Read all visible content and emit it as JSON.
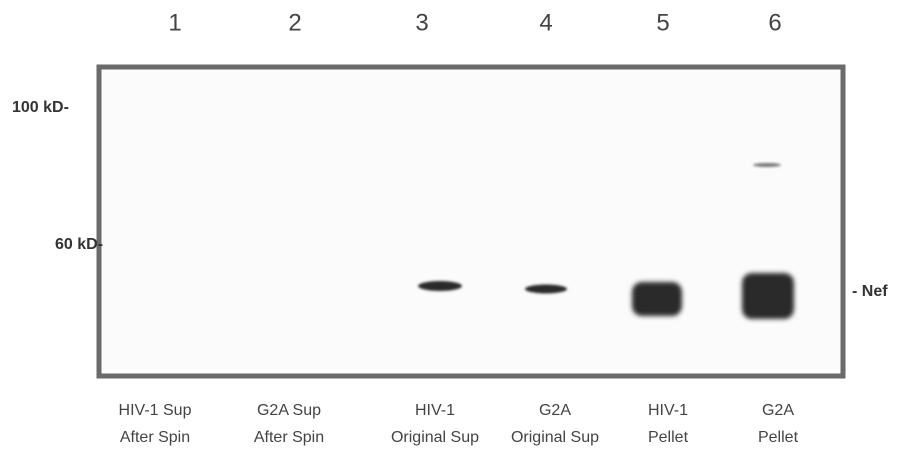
{
  "lanes": [
    {
      "number": "1",
      "label": [
        "HIV-1 Sup",
        "After Spin"
      ]
    },
    {
      "number": "2",
      "label": [
        "G2A Sup",
        "After Spin"
      ]
    },
    {
      "number": "3",
      "label": [
        "HIV-1",
        "Original Sup"
      ]
    },
    {
      "number": "4",
      "label": [
        "G2A",
        "Original Sup"
      ]
    },
    {
      "number": "5",
      "label": [
        "HIV-1",
        "Pellet"
      ]
    },
    {
      "number": "6",
      "label": [
        "G2A",
        "Pellet"
      ]
    }
  ],
  "markers": [
    "100 kD-",
    "60 kD-"
  ],
  "band_label": "- Nef"
}
